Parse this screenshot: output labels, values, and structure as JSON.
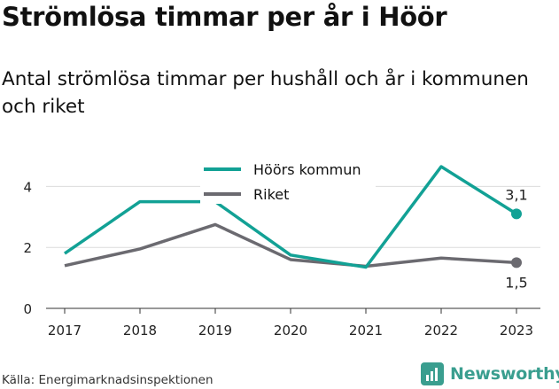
{
  "title": "Strömlösa timmar per år i Höör",
  "subtitle": "Antal strömlösa timmar per hushåll och år i kommunen och riket",
  "source": "Källa: Energimarknadsinspektionen",
  "brand": "Newsworthy",
  "chart_data": {
    "type": "line",
    "x": [
      "2017",
      "2018",
      "2019",
      "2020",
      "2021",
      "2022",
      "2023"
    ],
    "ylim": [
      0,
      5
    ],
    "yticks": [
      "0",
      "2",
      "4"
    ],
    "grid": true,
    "legend": "top-center",
    "series": [
      {
        "name": "Höörs kommun",
        "color": "#12a195",
        "values": [
          1.8,
          3.5,
          3.5,
          1.75,
          1.35,
          4.65,
          3.1
        ],
        "end_label": "3,1"
      },
      {
        "name": "Riket",
        "color": "#6b6a70",
        "values": [
          1.4,
          1.95,
          2.75,
          1.6,
          1.38,
          1.65,
          1.5
        ],
        "end_label": "1,5"
      }
    ]
  }
}
